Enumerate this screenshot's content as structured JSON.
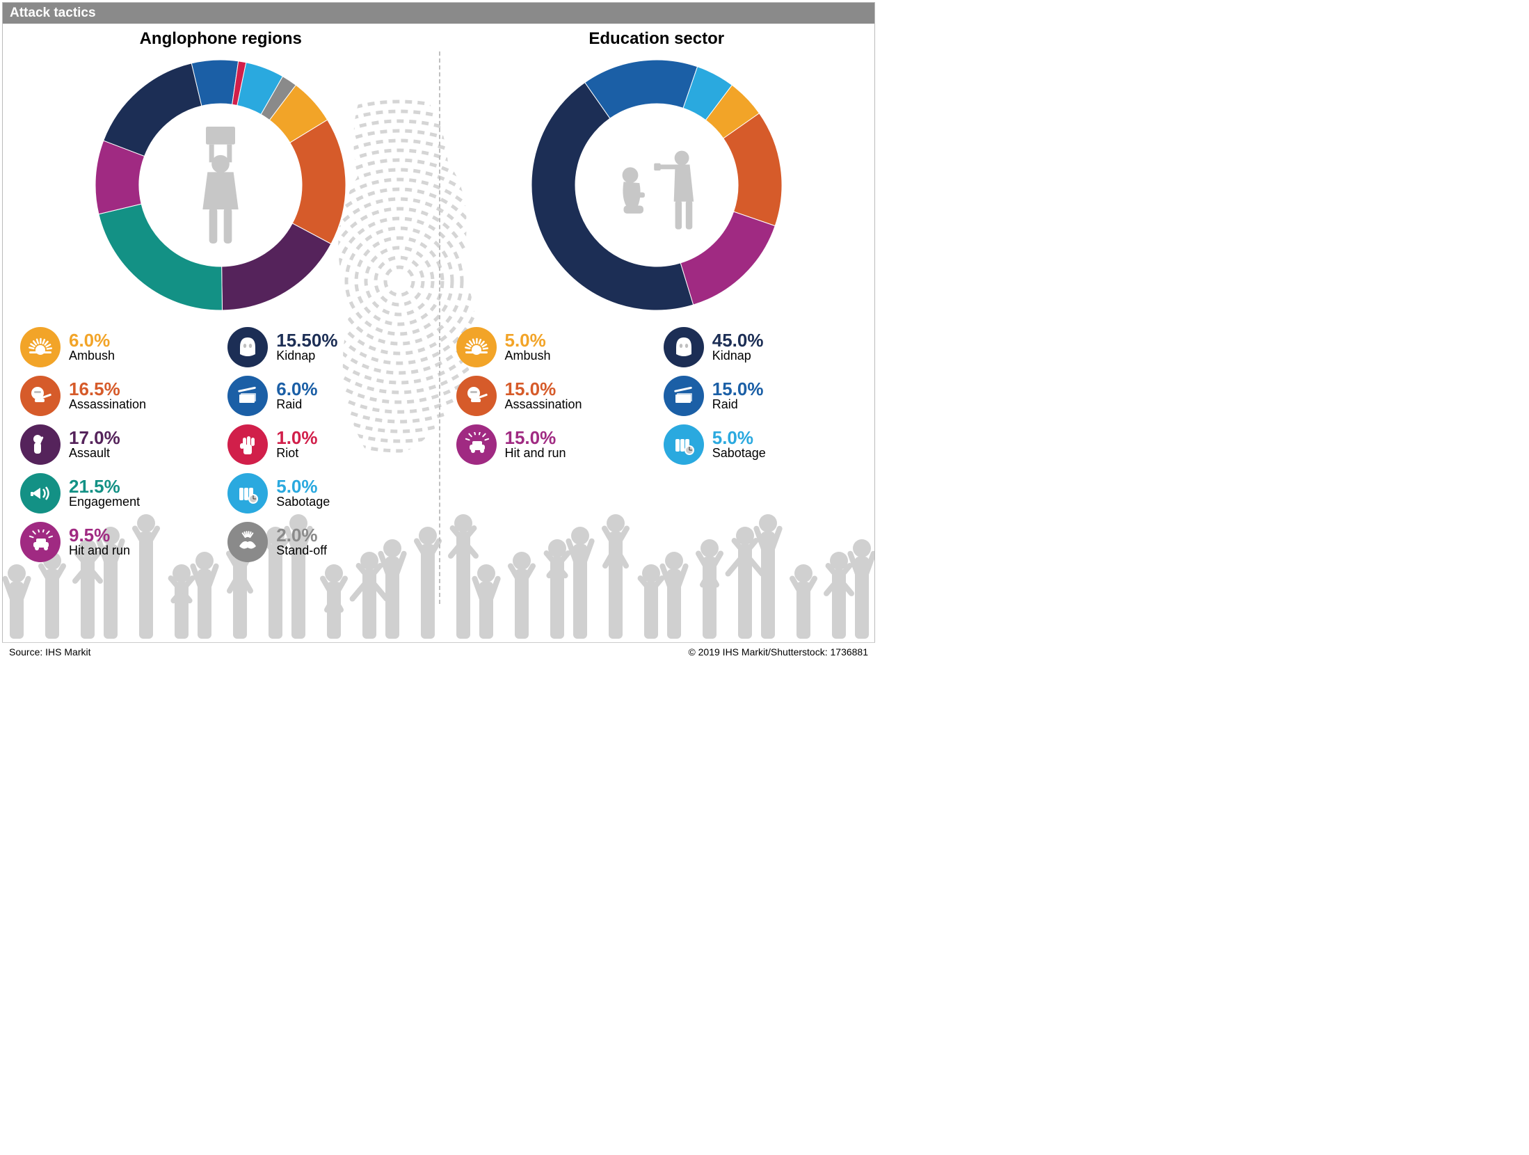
{
  "title": "Attack tactics",
  "source": "Source: IHS Markit",
  "copyright": "© 2019 IHS Markit/Shutterstock: 1736881",
  "icon_fill": "#ffffff",
  "bg_crowd_color": "#d0d0d0",
  "bg_map_color": "#d5d5d5",
  "donut": {
    "outer_radius": 180,
    "inner_radius": 117,
    "start_angle_deg": -53,
    "silhouette_color": "#c7c7c7"
  },
  "tactic_colors": {
    "ambush": "#f2a428",
    "assassination": "#d65b2a",
    "assault": "#55235b",
    "engagement": "#139185",
    "hit_and_run": "#a02a82",
    "kidnap": "#1c2e55",
    "raid": "#1b5fa6",
    "riot": "#d11f4a",
    "sabotage": "#2aa9df",
    "standoff": "#8a8a8a"
  },
  "panels": [
    {
      "key": "anglophone",
      "title": "Anglophone regions",
      "center_icon": "protester",
      "slices": [
        {
          "tactic": "ambush",
          "value": 6.0,
          "label": "Ambush"
        },
        {
          "tactic": "assassination",
          "value": 16.5,
          "label": "Assassination"
        },
        {
          "tactic": "assault",
          "value": 17.0,
          "label": "Assault"
        },
        {
          "tactic": "engagement",
          "value": 21.5,
          "label": "Engagement"
        },
        {
          "tactic": "hit_and_run",
          "value": 9.5,
          "label": "Hit and run"
        },
        {
          "tactic": "kidnap",
          "value": 15.5,
          "label": "Kidnap"
        },
        {
          "tactic": "raid",
          "value": 6.0,
          "label": "Raid"
        },
        {
          "tactic": "riot",
          "value": 1.0,
          "label": "Riot"
        },
        {
          "tactic": "sabotage",
          "value": 5.0,
          "label": "Sabotage"
        },
        {
          "tactic": "standoff",
          "value": 2.0,
          "label": "Stand-off"
        }
      ],
      "legend_columns": [
        [
          "ambush",
          "assassination",
          "assault",
          "engagement",
          "hit_and_run"
        ],
        [
          "kidnap",
          "raid",
          "riot",
          "sabotage",
          "standoff"
        ]
      ],
      "pct_format": {
        "ambush": "6.0%",
        "assassination": "16.5%",
        "assault": "17.0%",
        "engagement": "21.5%",
        "hit_and_run": "9.5%",
        "kidnap": "15.50%",
        "raid": "6.0%",
        "riot": "1.0%",
        "sabotage": "5.0%",
        "standoff": "2.0%"
      }
    },
    {
      "key": "education",
      "title": "Education sector",
      "center_icon": "hostage",
      "slices": [
        {
          "tactic": "ambush",
          "value": 5.0,
          "label": "Ambush"
        },
        {
          "tactic": "assassination",
          "value": 15.0,
          "label": "Assassination"
        },
        {
          "tactic": "hit_and_run",
          "value": 15.0,
          "label": "Hit and run"
        },
        {
          "tactic": "kidnap",
          "value": 45.0,
          "label": "Kidnap"
        },
        {
          "tactic": "raid",
          "value": 15.0,
          "label": "Raid"
        },
        {
          "tactic": "sabotage",
          "value": 5.0,
          "label": "Sabotage"
        }
      ],
      "legend_columns": [
        [
          "ambush",
          "assassination",
          "hit_and_run"
        ],
        [
          "kidnap",
          "raid",
          "sabotage"
        ]
      ],
      "pct_format": {
        "ambush": "5.0%",
        "assassination": "15.0%",
        "hit_and_run": "15.0%",
        "kidnap": "45.0%",
        "raid": "15.0%",
        "sabotage": "5.0%"
      }
    }
  ]
}
